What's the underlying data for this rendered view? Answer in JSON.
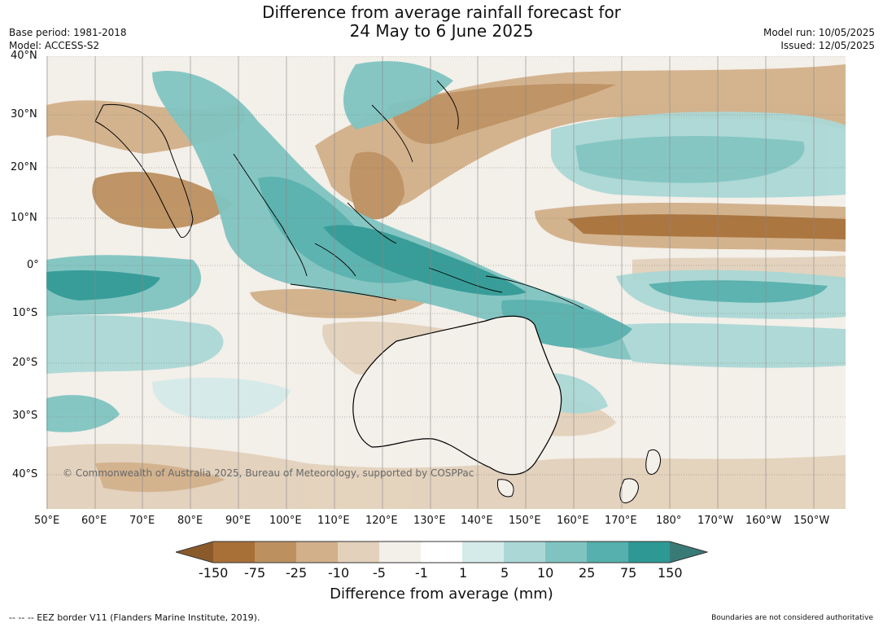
{
  "header": {
    "title_line1": "Difference from average rainfall forecast for",
    "title_line2": "24 May to 6 June 2025",
    "base_period": "Base period: 1981-2018",
    "model": "Model: ACCESS-S2",
    "model_run": "Model run: 10/05/2025",
    "issued": "Issued: 12/05/2025"
  },
  "map": {
    "lat_labels": [
      "40°N",
      "30°N",
      "20°N",
      "10°N",
      "0°",
      "10°S",
      "20°S",
      "30°S",
      "40°S"
    ],
    "lon_labels": [
      "50°E",
      "60°E",
      "70°E",
      "80°E",
      "90°E",
      "100°E",
      "110°E",
      "120°E",
      "130°E",
      "140°E",
      "150°E",
      "160°E",
      "170°E",
      "180°",
      "170°W",
      "160°W",
      "150°W"
    ],
    "copyright": "© Commonwealth of Australia 2025, Bureau of Meteorology, supported by COSPPac",
    "ocean_color": "#f3efe9",
    "land_outline_color": "#000000"
  },
  "colorbar": {
    "title": "Difference from average (mm)",
    "tick_labels": [
      "-150",
      "-75",
      "-25",
      "-10",
      "-5",
      "-1",
      "1",
      "5",
      "10",
      "25",
      "75",
      "150"
    ],
    "colors": [
      "#8b5a2b",
      "#a87037",
      "#bd9060",
      "#d2b08a",
      "#e3d1bb",
      "#f3efe9",
      "#ffffff",
      "#d5ebea",
      "#abd8d6",
      "#80c4c1",
      "#56b0ad",
      "#2e9994",
      "#3a7a76"
    ]
  },
  "footer": {
    "eez_note": "--  --  -- EEZ border V11 (Flanders Marine Institute, 2019).",
    "boundaries_note": "Boundaries are not considered authoritative"
  }
}
